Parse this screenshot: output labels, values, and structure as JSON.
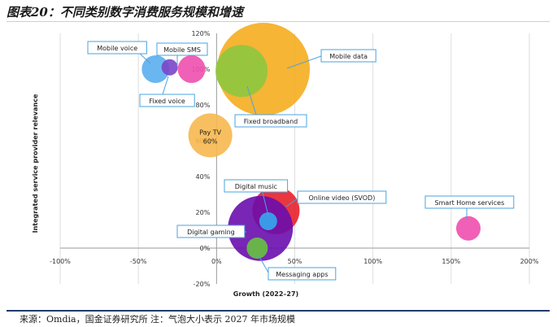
{
  "figure_title": "图表20：不同类别数字消费服务规模和增速",
  "source_note": "来源：Omdia，国金证券研究所 注：气泡大小表示 2027 年市场规模",
  "chart_data": {
    "type": "bubble",
    "title": "",
    "xlabel": "Growth (2022–27)",
    "ylabel": "Integrated service provider relevance",
    "xlim": [
      -100,
      200
    ],
    "ylim": [
      -20,
      120
    ],
    "x_ticks": [
      -100,
      -50,
      0,
      50,
      100,
      150,
      200
    ],
    "x_tick_labels": [
      "-100%",
      "-50%",
      "0%",
      "50%",
      "100%",
      "150%",
      "200%"
    ],
    "y_ticks": [
      -20,
      0,
      20,
      40,
      60,
      80,
      100,
      120
    ],
    "y_tick_labels": [
      "-20%",
      "0%",
      "20%",
      "40%",
      "60%",
      "80%",
      "100%",
      "120%"
    ],
    "grid": "vertical",
    "points": [
      {
        "name": "Mobile data",
        "x": 30,
        "y": 100,
        "size": 57,
        "color": "#f5ad1e",
        "label": "Mobile data"
      },
      {
        "name": "Fixed broadband",
        "x": 16,
        "y": 99,
        "size": 32,
        "color": "#8ec63f",
        "label": "Fixed broadband"
      },
      {
        "name": "Mobile voice",
        "x": -39,
        "y": 100,
        "size": 17,
        "color": "#5aaef0",
        "label": "Mobile voice"
      },
      {
        "name": "Mobile SMS",
        "x": -16,
        "y": 100,
        "size": 17,
        "color": "#ee4fae",
        "label": "Mobile SMS"
      },
      {
        "name": "Fixed voice",
        "x": -30,
        "y": 101,
        "size": 10,
        "color": "#7a45c9",
        "label": "Fixed voice"
      },
      {
        "name": "Pay TV",
        "x": -4,
        "y": 63,
        "size": 27,
        "color": "#f6b84e",
        "label": "Pay TV",
        "inner_label": "Pay TV",
        "inner_value": "60%"
      },
      {
        "name": "Online video (SVOD)",
        "x": 38,
        "y": 21,
        "size": 29,
        "color": "#e8202a",
        "label": "Online video (SVOD)"
      },
      {
        "name": "Digital gaming",
        "x": 28,
        "y": 11,
        "size": 40,
        "color": "#6a0dad",
        "label": "Digital gaming"
      },
      {
        "name": "Digital music",
        "x": 33,
        "y": 15,
        "size": 11,
        "color": "#34a8f0",
        "label": "Digital music"
      },
      {
        "name": "Messaging apps",
        "x": 26,
        "y": 0,
        "size": 13,
        "color": "#66c43f",
        "label": "Messaging apps"
      },
      {
        "name": "Smart Home services",
        "x": 161,
        "y": 11,
        "size": 15,
        "color": "#ee4fae",
        "label": "Smart Home services"
      }
    ]
  }
}
